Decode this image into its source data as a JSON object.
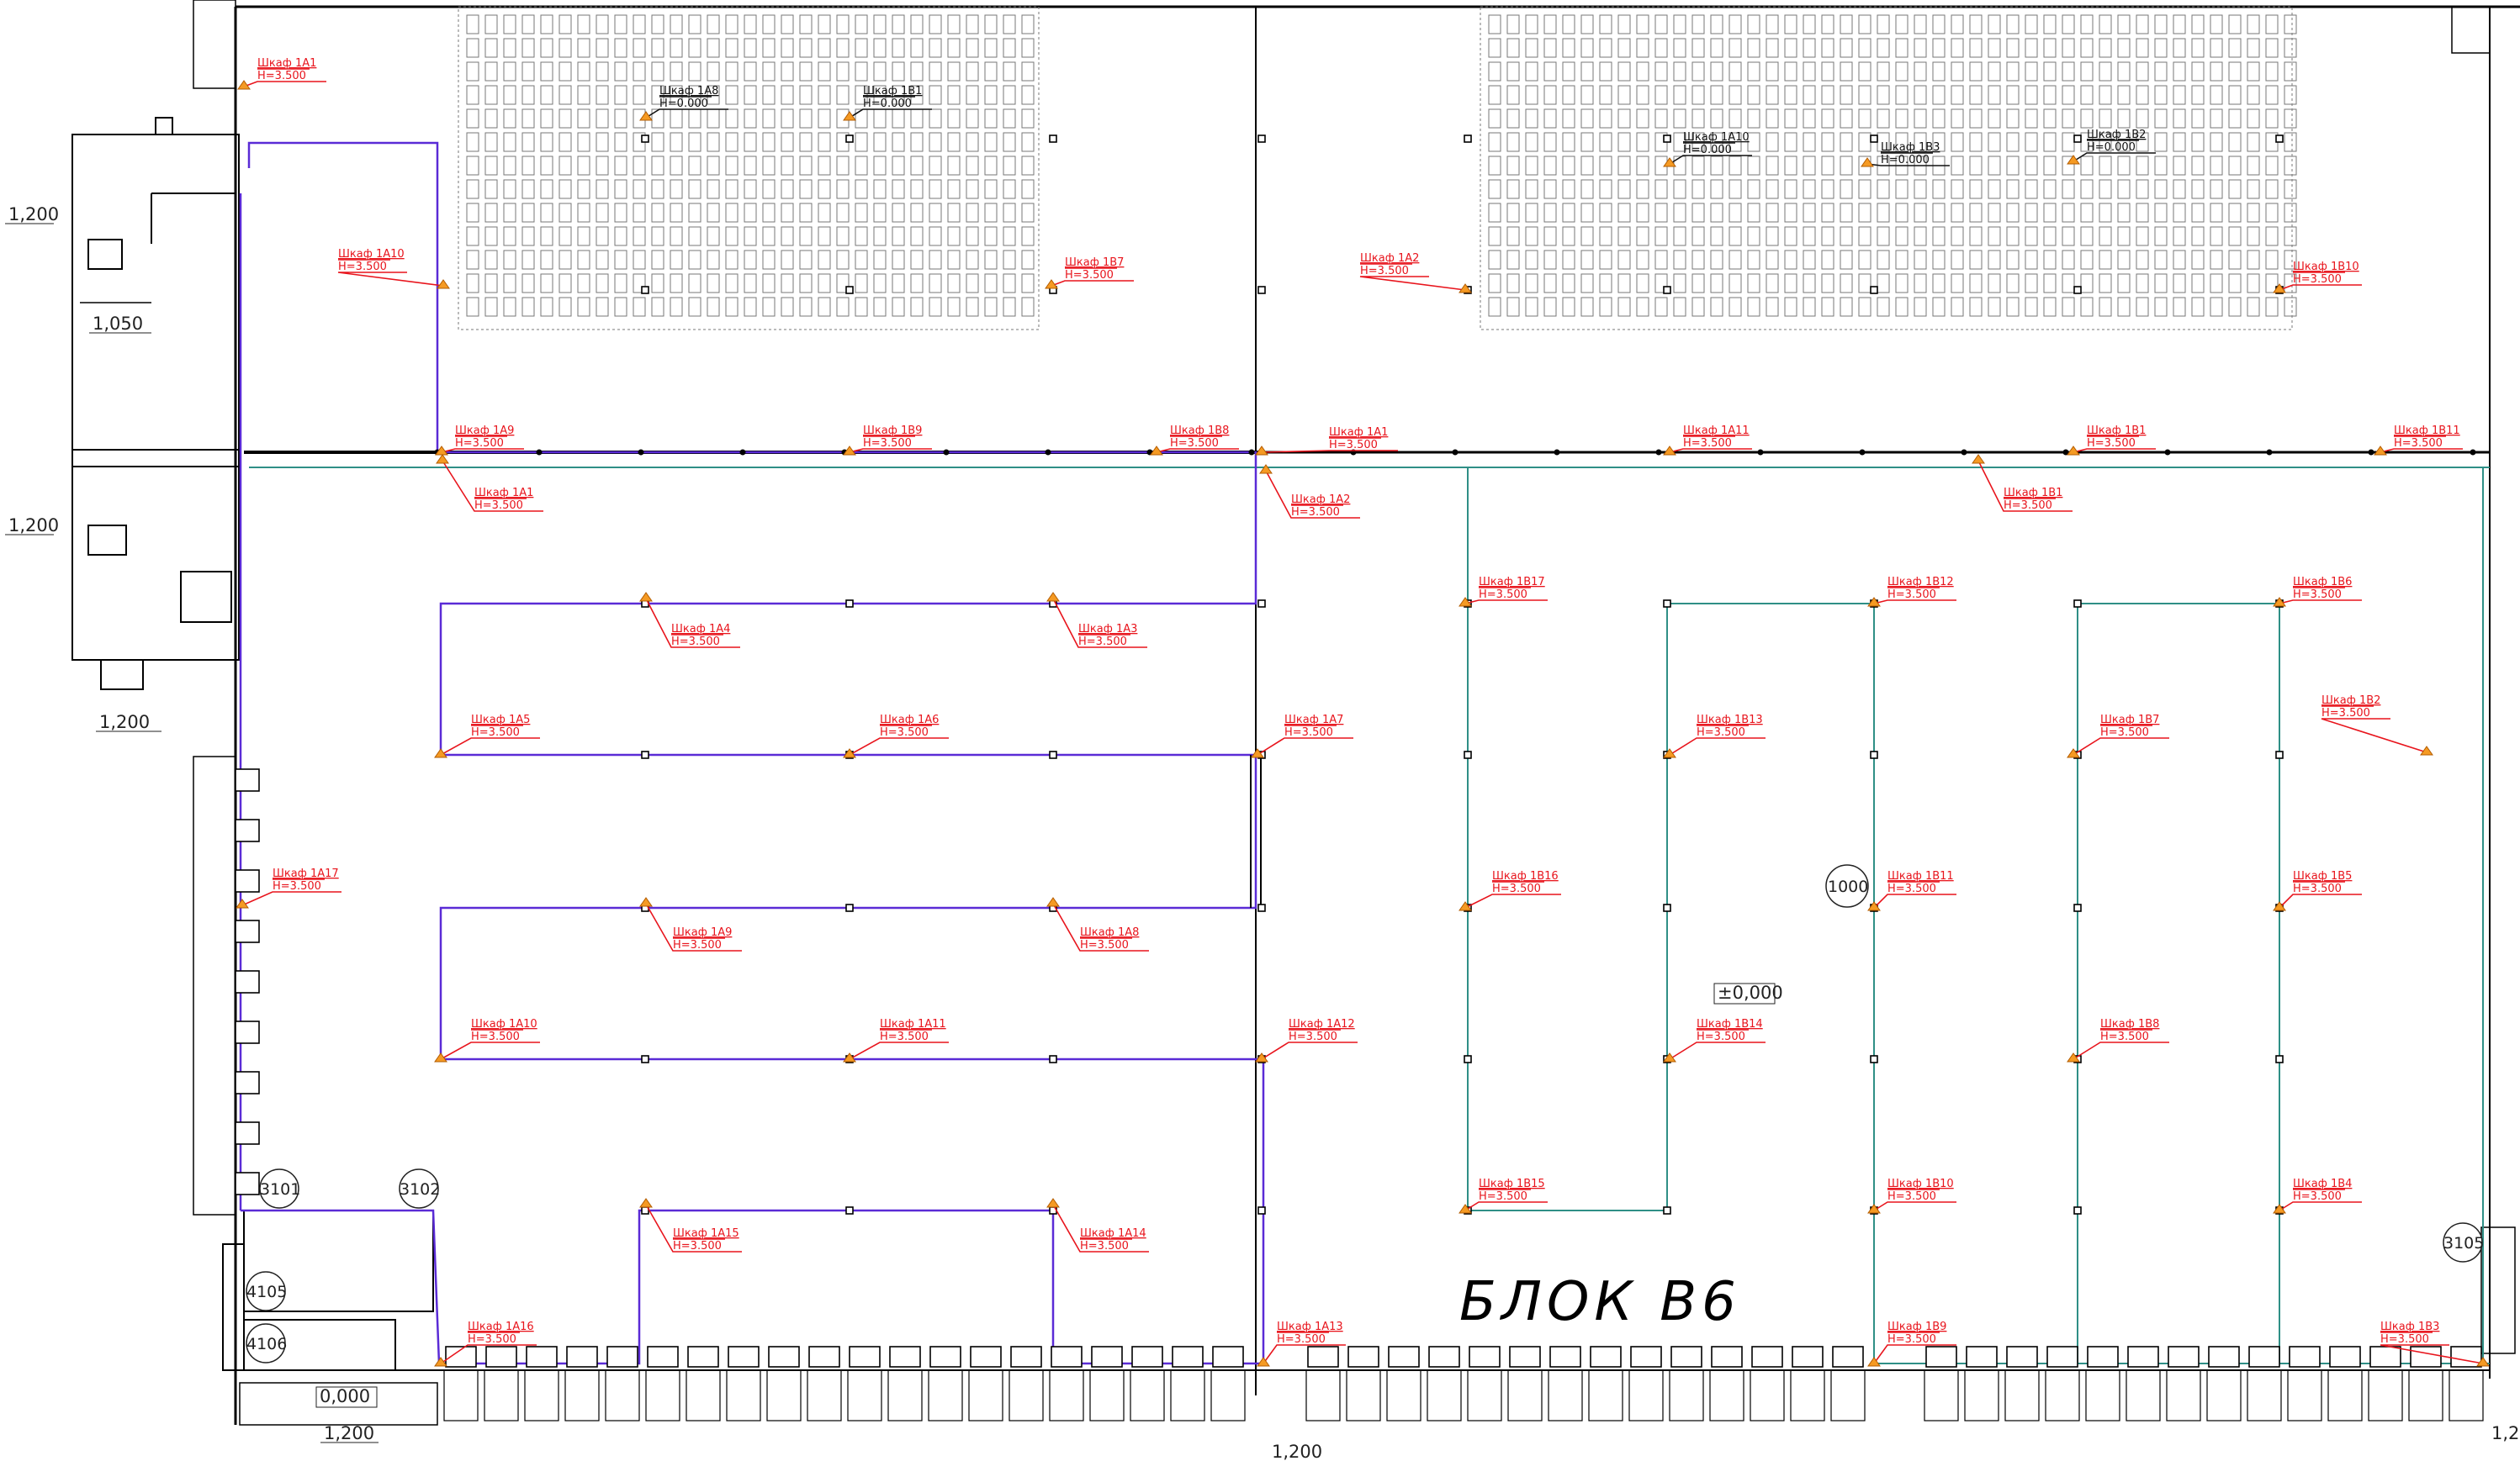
{
  "block_title": "БЛОК В6",
  "elevations": [
    "1,200",
    "1,050",
    "1,200",
    "1,200",
    "0,000",
    "±0,000",
    "0.000",
    "1,200",
    "1,200",
    "1,2"
  ],
  "room_numbers": [
    "1000",
    "3101",
    "3102",
    "4105",
    "4106",
    "3105"
  ],
  "height_label": "H=",
  "cabinets": [
    {
      "name": "Шкаф 1А1",
      "h": "3.500"
    },
    {
      "name": "Шкаф 1А8",
      "h": "0.000"
    },
    {
      "name": "Шкаф 1В1",
      "h": "0.000"
    },
    {
      "name": "Шкаф 1А10",
      "h": "0.000"
    },
    {
      "name": "Шкаф 1В3",
      "h": "0.000"
    },
    {
      "name": "Шкаф 1В2",
      "h": "0.000"
    },
    {
      "name": "Шкаф 1А10",
      "h": "3.500"
    },
    {
      "name": "Шкаф 1В7",
      "h": "3.500"
    },
    {
      "name": "Шкаф 1А2",
      "h": "3.500"
    },
    {
      "name": "Шкаф 1В10",
      "h": "3.500"
    },
    {
      "name": "Шкаф 1А9",
      "h": "3.500"
    },
    {
      "name": "Шкаф 1В9",
      "h": "3.500"
    },
    {
      "name": "Шкаф 1В8",
      "h": "3.500"
    },
    {
      "name": "Шкаф 1А1",
      "h": "3.500"
    },
    {
      "name": "Шкаф 1А11",
      "h": "3.500"
    },
    {
      "name": "Шкаф 1В1",
      "h": "3.500"
    },
    {
      "name": "Шкаф 1В11",
      "h": "3.500"
    },
    {
      "name": "Шкаф 1А1",
      "h": "3.500"
    },
    {
      "name": "Шкаф 1А2",
      "h": "3.500"
    },
    {
      "name": "Шкаф 1В1",
      "h": "3.500"
    },
    {
      "name": "Шкаф 1В17",
      "h": "3.500"
    },
    {
      "name": "Шкаф 1В12",
      "h": "3.500"
    },
    {
      "name": "Шкаф 1В6",
      "h": "3.500"
    },
    {
      "name": "Шкаф 1А4",
      "h": "3.500"
    },
    {
      "name": "Шкаф 1А3",
      "h": "3.500"
    },
    {
      "name": "Шкаф 1В2",
      "h": "3.500"
    },
    {
      "name": "Шкаф 1А5",
      "h": "3.500"
    },
    {
      "name": "Шкаф 1А6",
      "h": "3.500"
    },
    {
      "name": "Шкаф 1А7",
      "h": "3.500"
    },
    {
      "name": "Шкаф 1В13",
      "h": "3.500"
    },
    {
      "name": "Шкаф 1В7",
      "h": "3.500"
    },
    {
      "name": "Шкаф 1А17",
      "h": "3.500"
    },
    {
      "name": "Шкаф 1В16",
      "h": "3.500"
    },
    {
      "name": "Шкаф 1В11",
      "h": "3.500"
    },
    {
      "name": "Шкаф 1В5",
      "h": "3.500"
    },
    {
      "name": "Шкаф 1А9",
      "h": "3.500"
    },
    {
      "name": "Шкаф 1А8",
      "h": "3.500"
    },
    {
      "name": "Шкаф 1А10",
      "h": "3.500"
    },
    {
      "name": "Шкаф 1А11",
      "h": "3.500"
    },
    {
      "name": "Шкаф 1А12",
      "h": "3.500"
    },
    {
      "name": "Шкаф 1В14",
      "h": "3.500"
    },
    {
      "name": "Шкаф 1В8",
      "h": "3.500"
    },
    {
      "name": "Шкаф 1В15",
      "h": "3.500"
    },
    {
      "name": "Шкаф 1В10",
      "h": "3.500"
    },
    {
      "name": "Шкаф 1В4",
      "h": "3.500"
    },
    {
      "name": "Шкаф 1А15",
      "h": "3.500"
    },
    {
      "name": "Шкаф 1А14",
      "h": "3.500"
    },
    {
      "name": "Шкаф 1А16",
      "h": "3.500"
    },
    {
      "name": "Шкаф 1А13",
      "h": "3.500"
    },
    {
      "name": "Шкаф 1В9",
      "h": "3.500"
    },
    {
      "name": "Шкаф 1В3",
      "h": "3.500"
    }
  ],
  "colors": {
    "label": "#e8141c",
    "purple_line": "#5a2bd6",
    "teal_line": "#2f8f86",
    "cabinet": "#f59a23"
  }
}
